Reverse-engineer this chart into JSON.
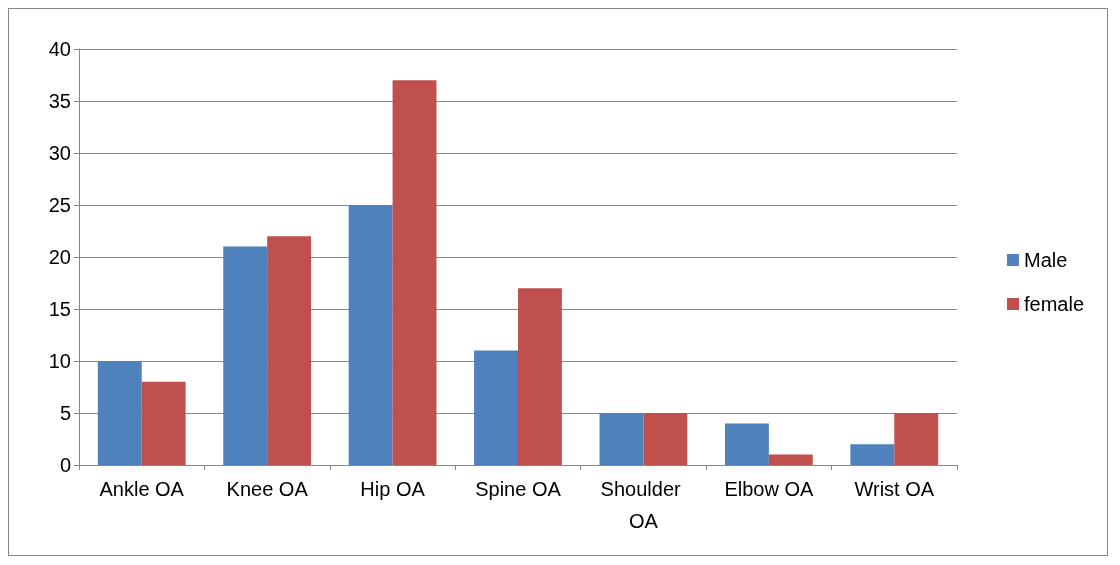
{
  "chart_data": {
    "type": "bar",
    "categories": [
      "Ankle OA",
      "Knee OA",
      "Hip OA",
      "Spine OA",
      "Shoulder OA",
      "Elbow OA",
      "Wrist OA"
    ],
    "series": [
      {
        "name": "Male",
        "color": "#4f81bd",
        "values": [
          10,
          21,
          25,
          11,
          5,
          4,
          2
        ]
      },
      {
        "name": "female",
        "color": "#c0504d",
        "values": [
          8,
          22,
          37,
          17,
          5,
          1,
          5
        ]
      }
    ],
    "ylim": [
      0,
      40
    ],
    "yticks": [
      0,
      5,
      10,
      15,
      20,
      25,
      30,
      35,
      40
    ],
    "grid": "y",
    "legend": "right"
  }
}
